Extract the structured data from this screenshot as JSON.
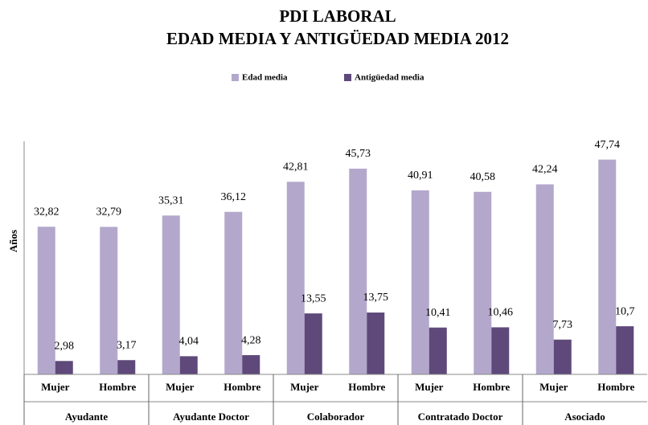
{
  "chart_data": {
    "type": "bar",
    "title": "PDI LABORAL",
    "subtitle": "EDAD MEDIA Y ANTIGÜEDAD MEDIA 2012",
    "y_label": "Años",
    "categories": [
      "Mujer",
      "Hombre",
      "Mujer",
      "Hombre",
      "Mujer",
      "Hombre",
      "Mujer",
      "Hombre",
      "Mujer",
      "Hombre"
    ],
    "groups": [
      "Ayudante",
      "Ayudante Doctor",
      "Colaborador",
      "Contratado Doctor",
      "Asociado"
    ],
    "series": [
      {
        "name": "Edad media",
        "color": "#b3a8cc",
        "values": [
          32.82,
          32.79,
          35.31,
          36.12,
          42.81,
          45.73,
          40.91,
          40.58,
          42.24,
          47.74
        ],
        "value_labels": [
          "32,82",
          "32,79",
          "35,31",
          "36,12",
          "42,81",
          "45,73",
          "40,91",
          "40,58",
          "42,24",
          "47,74"
        ]
      },
      {
        "name": "Antigüedad media",
        "color": "#5f497a",
        "values": [
          2.98,
          3.17,
          4.04,
          4.28,
          13.55,
          13.75,
          10.41,
          10.46,
          7.73,
          10.7
        ],
        "value_labels": [
          "2,98",
          "3,17",
          "4,04",
          "4,28",
          "13,55",
          "13,75",
          "10,41",
          "10,46",
          "7,73",
          "10,7"
        ]
      }
    ],
    "ylim": [
      0,
      50
    ],
    "legend": "top"
  }
}
